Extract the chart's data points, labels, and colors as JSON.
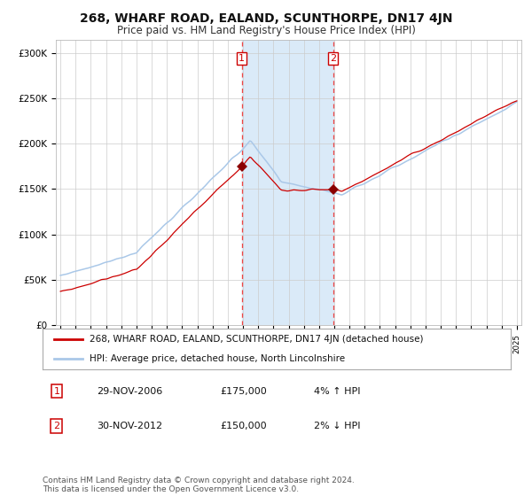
{
  "title": "268, WHARF ROAD, EALAND, SCUNTHORPE, DN17 4JN",
  "subtitle": "Price paid vs. HM Land Registry's House Price Index (HPI)",
  "ylabel_ticks": [
    "£0",
    "£50K",
    "£100K",
    "£150K",
    "£200K",
    "£250K",
    "£300K"
  ],
  "ytick_values": [
    0,
    50000,
    100000,
    150000,
    200000,
    250000,
    300000
  ],
  "ylim": [
    0,
    315000
  ],
  "year_start": 1995,
  "year_end": 2025,
  "purchase1_year": 2006.917,
  "purchase1_price": 175000,
  "purchase1_label": "1",
  "purchase1_date": "29-NOV-2006",
  "purchase1_pct": "4%",
  "purchase1_dir": "↑",
  "purchase2_year": 2012.917,
  "purchase2_price": 150000,
  "purchase2_label": "2",
  "purchase2_date": "30-NOV-2012",
  "purchase2_pct": "2%",
  "purchase2_dir": "↓",
  "hpi_color": "#aac8e8",
  "price_color": "#cc0000",
  "shade_color": "#daeaf8",
  "dashed_color": "#ee4444",
  "bg_color": "#ffffff",
  "grid_color": "#cccccc",
  "legend_property_label": "268, WHARF ROAD, EALAND, SCUNTHORPE, DN17 4JN (detached house)",
  "legend_hpi_label": "HPI: Average price, detached house, North Lincolnshire",
  "footnote": "Contains HM Land Registry data © Crown copyright and database right 2024.\nThis data is licensed under the Open Government Licence v3.0.",
  "title_fontsize": 10,
  "subtitle_fontsize": 8.5,
  "tick_fontsize": 7.5,
  "legend_fontsize": 7.5,
  "footnote_fontsize": 6.5
}
